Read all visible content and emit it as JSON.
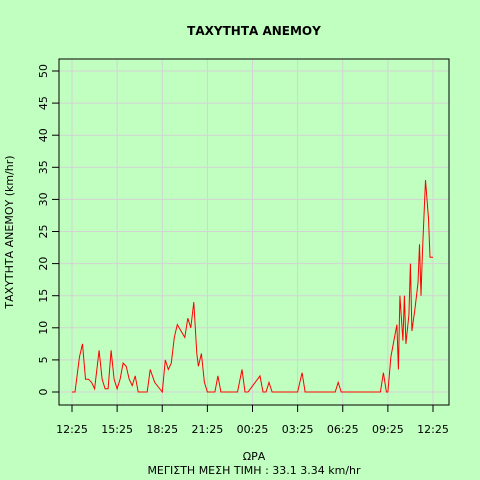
{
  "chart_data": {
    "type": "line",
    "title": "ΤΑΧΥΤΗΤΑ ΑΝΕΜΟΥ",
    "xlabel": "ΩΡΑ",
    "subtitle": "ΜΕΓΙΣΤΗ ΜΕΣΗ ΤΙΜΗ :  33.1  3.34  km/hr",
    "ylabel": "ΤΑΧΥΤΗΤΑ ΑΝΕΜΟΥ  (km/hr)",
    "ylim": [
      0,
      50
    ],
    "y_ticks": [
      0,
      5,
      10,
      15,
      20,
      25,
      30,
      35,
      40,
      45,
      50
    ],
    "x_ticks": [
      "12:25",
      "15:25",
      "18:25",
      "21:25",
      "00:25",
      "03:25",
      "06:25",
      "09:25",
      "12:25"
    ],
    "xlim_hours": [
      0,
      24
    ],
    "grid": true,
    "line_color": "#ff0000",
    "background_color": "#c1ffc1",
    "series": [
      {
        "x": [
          0,
          0.2,
          0.5,
          0.7,
          0.9,
          1.1,
          1.3,
          1.5,
          1.8,
          2.0,
          2.2,
          2.4,
          2.6,
          2.8,
          3.0,
          3.2,
          3.4,
          3.6,
          3.8,
          4.0,
          4.2,
          4.4,
          4.6,
          4.8,
          5.0,
          5.2,
          5.5,
          6.0,
          6.2,
          6.4,
          6.6,
          6.8,
          7.0,
          7.5,
          7.7,
          7.9,
          8.1,
          8.3,
          8.4,
          8.6,
          8.8,
          9.0,
          9.1,
          9.3,
          9.5,
          9.7,
          9.9,
          10.1,
          10.3,
          10.5,
          11.0,
          11.3,
          11.5,
          11.7,
          12.5,
          12.7,
          12.9,
          13.1,
          13.3,
          13.5,
          13.7,
          14.0,
          15.0,
          15.3,
          15.5,
          16.0,
          17.0,
          17.5,
          17.7,
          17.9,
          18.5,
          19.0,
          19.5,
          20.0,
          20.5,
          20.7,
          20.9,
          21.0,
          21.2,
          21.4,
          21.6,
          21.7,
          21.8,
          22.0,
          22.1,
          22.2,
          22.4,
          22.5,
          22.6,
          22.8,
          23.0,
          23.1,
          23.2,
          23.3,
          23.5,
          23.7,
          23.8,
          24.0
        ],
        "y": [
          0,
          0,
          5.5,
          7.5,
          2,
          2,
          1.5,
          0.5,
          6.5,
          2,
          0.5,
          0.5,
          6.5,
          2,
          0.5,
          2,
          4.5,
          4,
          2,
          1,
          2.5,
          0,
          0,
          0,
          0,
          3.5,
          1.5,
          0,
          5,
          3.5,
          4.5,
          8.5,
          10.5,
          8.5,
          11.5,
          10,
          14,
          6,
          4,
          6,
          1.5,
          0,
          0,
          0,
          0,
          2.5,
          0,
          0,
          0,
          0,
          0,
          3.5,
          0,
          0,
          2.5,
          0,
          0,
          1.5,
          0,
          0,
          0,
          0,
          0,
          3,
          0,
          0,
          0,
          0,
          1.5,
          0,
          0,
          0,
          0,
          0,
          0,
          3,
          0,
          0,
          5.5,
          8,
          10.5,
          3.5,
          15,
          8,
          15,
          7.5,
          12,
          20,
          9.5,
          13,
          17,
          23,
          15,
          22,
          33,
          27,
          21,
          21
        ],
        "note_ignore": ""
      }
    ]
  }
}
